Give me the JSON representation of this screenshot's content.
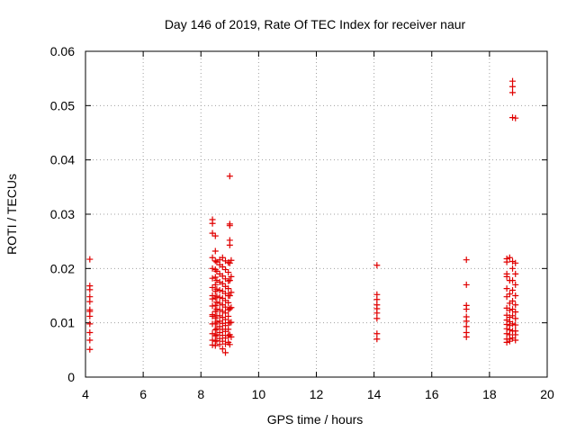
{
  "chart_data": {
    "type": "scatter",
    "title": "Day 146 of 2019, Rate Of TEC Index for receiver naur",
    "xlabel": "GPS time / hours",
    "ylabel": "ROTI / TECUs",
    "xlim": [
      4,
      20
    ],
    "ylim": [
      0,
      0.06
    ],
    "xticks": [
      "4",
      "6",
      "8",
      "10",
      "12",
      "14",
      "16",
      "18",
      "20"
    ],
    "yticks": [
      "0",
      "0.01",
      "0.02",
      "0.03",
      "0.04",
      "0.05",
      "0.06"
    ],
    "grid": true,
    "marker": "+",
    "color": "#e00000",
    "series": [
      {
        "x": [
          4.15,
          4.15,
          4.15,
          4.15,
          4.15,
          4.15,
          4.15,
          4.15,
          4.15,
          4.15,
          4.15,
          4.15,
          8.4,
          8.4,
          8.4,
          8.4,
          8.4,
          8.4,
          8.4,
          8.4,
          8.4,
          8.4,
          8.4,
          8.4,
          8.4,
          8.4,
          8.4,
          8.4,
          8.5,
          8.5,
          8.5,
          8.5,
          8.5,
          8.5,
          8.5,
          8.5,
          8.5,
          8.5,
          8.5,
          8.5,
          8.5,
          8.5,
          8.5,
          8.5,
          8.55,
          8.55,
          8.55,
          8.55,
          8.55,
          8.55,
          8.55,
          8.55,
          8.55,
          8.55,
          8.55,
          8.55,
          8.65,
          8.65,
          8.65,
          8.65,
          8.65,
          8.65,
          8.65,
          8.65,
          8.65,
          8.65,
          8.65,
          8.65,
          8.65,
          8.65,
          8.75,
          8.75,
          8.75,
          8.75,
          8.75,
          8.75,
          8.75,
          8.75,
          8.75,
          8.75,
          8.75,
          8.75,
          8.75,
          8.75,
          8.85,
          8.85,
          8.85,
          8.85,
          8.85,
          8.85,
          8.85,
          8.85,
          8.85,
          8.85,
          8.85,
          8.85,
          8.85,
          8.85,
          8.95,
          8.95,
          8.95,
          8.95,
          8.95,
          8.95,
          8.95,
          8.95,
          8.95,
          8.95,
          8.95,
          8.95,
          9.0,
          9.0,
          9.0,
          9.0,
          9.0,
          9.0,
          9.0,
          9.0,
          9.0,
          9.0,
          9.0,
          9.0,
          9.05,
          9.05,
          9.05,
          9.05,
          9.05,
          9.05,
          14.1,
          14.1,
          14.1,
          14.1,
          14.1,
          14.1,
          14.1,
          14.1,
          14.1,
          17.2,
          17.2,
          17.2,
          17.2,
          17.2,
          17.2,
          17.2,
          17.2,
          17.2,
          18.6,
          18.6,
          18.6,
          18.6,
          18.6,
          18.6,
          18.6,
          18.6,
          18.6,
          18.6,
          18.6,
          18.6,
          18.6,
          18.6,
          18.7,
          18.7,
          18.7,
          18.7,
          18.7,
          18.7,
          18.7,
          18.7,
          18.7,
          18.7,
          18.7,
          18.7,
          18.8,
          18.8,
          18.8,
          18.8,
          18.8,
          18.8,
          18.8,
          18.8,
          18.8,
          18.8,
          18.8,
          18.8,
          18.8,
          18.8,
          18.9,
          18.9,
          18.9,
          18.9,
          18.9,
          18.9,
          18.9,
          18.9,
          18.9,
          18.9,
          18.9,
          18.9
        ],
        "y": [
          0.0217,
          0.0168,
          0.0161,
          0.0148,
          0.0139,
          0.0124,
          0.0121,
          0.0112,
          0.0098,
          0.0082,
          0.0068,
          0.0051,
          0.029,
          0.0283,
          0.0265,
          0.022,
          0.02,
          0.0182,
          0.0165,
          0.015,
          0.0131,
          0.0115,
          0.0098,
          0.008,
          0.0068,
          0.0059,
          0.0112,
          0.0144,
          0.026,
          0.0232,
          0.0214,
          0.0198,
          0.0184,
          0.017,
          0.0158,
          0.0146,
          0.0132,
          0.0121,
          0.0109,
          0.0098,
          0.0087,
          0.0076,
          0.0066,
          0.0058,
          0.0212,
          0.0195,
          0.0178,
          0.0162,
          0.0149,
          0.0138,
          0.0125,
          0.0113,
          0.0101,
          0.0089,
          0.0078,
          0.0067,
          0.0216,
          0.0207,
          0.019,
          0.0175,
          0.016,
          0.0147,
          0.0136,
          0.0124,
          0.0113,
          0.0103,
          0.0093,
          0.0082,
          0.0071,
          0.006,
          0.022,
          0.0203,
          0.0186,
          0.0172,
          0.0158,
          0.0145,
          0.0133,
          0.0121,
          0.011,
          0.0099,
          0.0088,
          0.0077,
          0.0066,
          0.0052,
          0.0214,
          0.0198,
          0.0181,
          0.0167,
          0.0154,
          0.0141,
          0.0129,
          0.0118,
          0.0106,
          0.0095,
          0.0084,
          0.0072,
          0.0061,
          0.0045,
          0.0211,
          0.0193,
          0.0177,
          0.0163,
          0.015,
          0.0137,
          0.0124,
          0.0112,
          0.01,
          0.0088,
          0.0076,
          0.0064,
          0.037,
          0.0282,
          0.0279,
          0.0252,
          0.0243,
          0.021,
          0.0178,
          0.015,
          0.0126,
          0.01,
          0.0078,
          0.006,
          0.0215,
          0.0185,
          0.0156,
          0.0128,
          0.0101,
          0.0074,
          0.0206,
          0.0152,
          0.0143,
          0.0133,
          0.0126,
          0.0118,
          0.0108,
          0.008,
          0.007,
          0.0216,
          0.017,
          0.0132,
          0.0125,
          0.0111,
          0.0103,
          0.0093,
          0.0082,
          0.0074,
          0.0218,
          0.0212,
          0.019,
          0.0185,
          0.0163,
          0.0148,
          0.0127,
          0.0114,
          0.0105,
          0.0097,
          0.0089,
          0.008,
          0.007,
          0.0064,
          0.022,
          0.0178,
          0.0153,
          0.0136,
          0.0123,
          0.011,
          0.0102,
          0.0095,
          0.0087,
          0.0078,
          0.007,
          0.0066,
          0.0545,
          0.0535,
          0.0524,
          0.0478,
          0.0213,
          0.02,
          0.0178,
          0.016,
          0.014,
          0.0125,
          0.0113,
          0.0098,
          0.0085,
          0.0072,
          0.0477,
          0.021,
          0.019,
          0.017,
          0.015,
          0.0133,
          0.012,
          0.0108,
          0.0096,
          0.0085,
          0.0078,
          0.0068
        ]
      }
    ]
  }
}
